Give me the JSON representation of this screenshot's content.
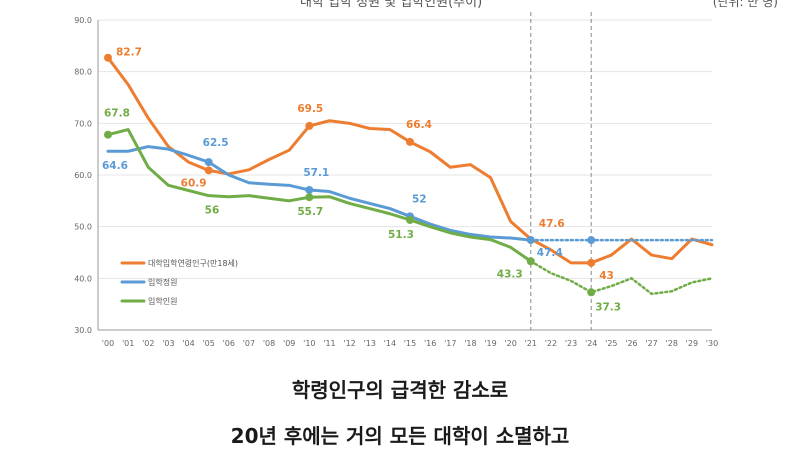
{
  "chart_data": {
    "type": "line",
    "title": "대학 입학 정원 및 입학인원(추이)",
    "unit_label": "(단위: 만 명)",
    "categories": [
      "'00",
      "'01",
      "'02",
      "'03",
      "'04",
      "'05",
      "'06",
      "'07",
      "'08",
      "'09",
      "'10",
      "'11",
      "'12",
      "'13",
      "'14",
      "'15",
      "'16",
      "'17",
      "'18",
      "'19",
      "'20",
      "'21",
      "'22",
      "'23",
      "'24",
      "'25",
      "'26",
      "'27",
      "'28",
      "'29",
      "'30"
    ],
    "ylim": [
      30,
      90
    ],
    "yticks": [
      "30.0",
      "40.0",
      "50.0",
      "60.0",
      "70.0",
      "80.0",
      "90.0"
    ],
    "ytick_values": [
      30,
      40,
      50,
      60,
      70,
      80,
      90
    ],
    "projection_start_index": 21,
    "vlines_index": [
      21,
      24
    ],
    "legend_position": "lower-left",
    "series": [
      {
        "name": "대학입학연령인구(만18세)",
        "color": "#ed7d31",
        "values": [
          82.7,
          77.5,
          71,
          65.5,
          62.5,
          60.9,
          60.2,
          61,
          63,
          64.8,
          69.5,
          70.5,
          70,
          69,
          68.8,
          66.4,
          64.5,
          61.5,
          62,
          59.5,
          51,
          47.6,
          45.5,
          43,
          43,
          44.5,
          47.6,
          44.5,
          43.8,
          47.6,
          46.5
        ],
        "dashed_from": null
      },
      {
        "name": "입학정원",
        "color": "#5b9bd5",
        "values": [
          64.6,
          64.6,
          65.5,
          65,
          63.8,
          62.5,
          60,
          58.5,
          58.2,
          58,
          57.1,
          56.8,
          55.5,
          54.5,
          53.5,
          52,
          50.5,
          49.3,
          48.5,
          48,
          47.8,
          47.4,
          47.4,
          47.4,
          47.4,
          47.4,
          47.4,
          47.4,
          47.4,
          47.4,
          47.4
        ],
        "dashed_from": 21
      },
      {
        "name": "입학인원",
        "color": "#70ad47",
        "values": [
          67.8,
          68.8,
          61.5,
          58,
          57,
          56,
          55.8,
          56,
          55.5,
          55,
          55.7,
          55.8,
          54.5,
          53.5,
          52.5,
          51.3,
          50,
          48.8,
          48,
          47.5,
          46,
          43.3,
          41,
          39.5,
          37.3,
          38.5,
          40,
          37,
          37.5,
          39.2,
          40
        ],
        "dashed_from": 21
      }
    ],
    "annotations": [
      {
        "series": 0,
        "index": 0,
        "text": "82.7",
        "dx": 8,
        "dy": -2
      },
      {
        "series": 0,
        "index": 5,
        "text": "60.9",
        "dx": -28,
        "dy": 16
      },
      {
        "series": 0,
        "index": 10,
        "text": "69.5",
        "dx": -12,
        "dy": -14
      },
      {
        "series": 0,
        "index": 15,
        "text": "66.4",
        "dx": -4,
        "dy": -14
      },
      {
        "series": 0,
        "index": 21,
        "text": "47.6",
        "dx": 8,
        "dy": -12
      },
      {
        "series": 0,
        "index": 24,
        "text": "43",
        "dx": 8,
        "dy": 16
      },
      {
        "series": 1,
        "index": 0,
        "text": "64.6",
        "dx": -6,
        "dy": 18
      },
      {
        "series": 1,
        "index": 5,
        "text": "62.5",
        "dx": -6,
        "dy": -16
      },
      {
        "series": 1,
        "index": 10,
        "text": "57.1",
        "dx": -6,
        "dy": -14
      },
      {
        "series": 1,
        "index": 15,
        "text": "52",
        "dx": 2,
        "dy": -14
      },
      {
        "series": 1,
        "index": 21,
        "text": "47.4",
        "dx": 6,
        "dy": 16
      },
      {
        "series": 2,
        "index": 0,
        "text": "67.8",
        "dx": -4,
        "dy": -18
      },
      {
        "series": 2,
        "index": 5,
        "text": "56",
        "dx": -4,
        "dy": 18
      },
      {
        "series": 2,
        "index": 10,
        "text": "55.7",
        "dx": -12,
        "dy": 18
      },
      {
        "series": 2,
        "index": 15,
        "text": "51.3",
        "dx": -22,
        "dy": 18
      },
      {
        "series": 2,
        "index": 21,
        "text": "43.3",
        "dx": -34,
        "dy": 16
      },
      {
        "series": 2,
        "index": 24,
        "text": "37.3",
        "dx": 4,
        "dy": 18
      }
    ],
    "markers": [
      {
        "series": 0,
        "index": 0
      },
      {
        "series": 0,
        "index": 5
      },
      {
        "series": 0,
        "index": 10
      },
      {
        "series": 0,
        "index": 15
      },
      {
        "series": 0,
        "index": 24
      },
      {
        "series": 1,
        "index": 5
      },
      {
        "series": 1,
        "index": 10
      },
      {
        "series": 1,
        "index": 15
      },
      {
        "series": 1,
        "index": 21
      },
      {
        "series": 1,
        "index": 24
      },
      {
        "series": 2,
        "index": 0
      },
      {
        "series": 2,
        "index": 10
      },
      {
        "series": 2,
        "index": 15
      },
      {
        "series": 2,
        "index": 21
      },
      {
        "series": 2,
        "index": 24
      }
    ]
  },
  "caption": {
    "line1": "학령인구의 급격한 감소로",
    "line2": "20년 후에는 거의 모든 대학이 소멸하고"
  }
}
